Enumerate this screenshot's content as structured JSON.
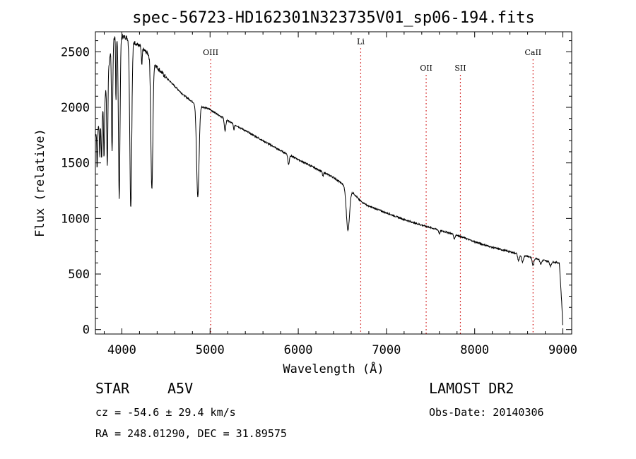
{
  "chart_data": {
    "type": "line",
    "title": "spec-56723-HD162301N323735V01_sp06-194.fits",
    "xlabel": "Wavelength (Å)",
    "ylabel": "Flux (relative)",
    "xlim": [
      3700,
      9100
    ],
    "ylim": [
      -40,
      2680
    ],
    "x_ticks": [
      4000,
      5000,
      6000,
      7000,
      8000,
      9000
    ],
    "y_ticks": [
      0,
      500,
      1000,
      1500,
      2000,
      2500
    ],
    "grid": false,
    "line_color": "#000000",
    "marker_color": "#cc0000",
    "continuum": [
      [
        3700,
        1750
      ],
      [
        3750,
        1850
      ],
      [
        3800,
        2050
      ],
      [
        3850,
        2350
      ],
      [
        3880,
        2600
      ],
      [
        3950,
        2650
      ],
      [
        4050,
        2630
      ],
      [
        4150,
        2580
      ],
      [
        4200,
        2550
      ],
      [
        4300,
        2480
      ],
      [
        4400,
        2360
      ],
      [
        4500,
        2270
      ],
      [
        4600,
        2190
      ],
      [
        4700,
        2110
      ],
      [
        4800,
        2050
      ],
      [
        4900,
        2010
      ],
      [
        5000,
        1980
      ],
      [
        5200,
        1880
      ],
      [
        5400,
        1790
      ],
      [
        5600,
        1700
      ],
      [
        5800,
        1610
      ],
      [
        6000,
        1530
      ],
      [
        6200,
        1450
      ],
      [
        6400,
        1370
      ],
      [
        6600,
        1250
      ],
      [
        6700,
        1160
      ],
      [
        6800,
        1110
      ],
      [
        7000,
        1050
      ],
      [
        7200,
        990
      ],
      [
        7400,
        940
      ],
      [
        7600,
        895
      ],
      [
        7800,
        850
      ],
      [
        8000,
        790
      ],
      [
        8200,
        740
      ],
      [
        8400,
        700
      ],
      [
        8600,
        660
      ],
      [
        8800,
        620
      ],
      [
        8960,
        600
      ],
      [
        8990,
        200
      ],
      [
        9000,
        0
      ]
    ],
    "absorption_lines": [
      {
        "x": 3720,
        "depth": 350,
        "width": 4
      },
      {
        "x": 3750,
        "depth": 300,
        "width": 4
      },
      {
        "x": 3770,
        "depth": 400,
        "width": 5
      },
      {
        "x": 3798,
        "depth": 500,
        "width": 5
      },
      {
        "x": 3835,
        "depth": 800,
        "width": 6
      },
      {
        "x": 3889,
        "depth": 1000,
        "width": 7
      },
      {
        "x": 3933,
        "depth": 600,
        "width": 4
      },
      {
        "x": 3970,
        "depth": 1450,
        "width": 9
      },
      {
        "x": 4101,
        "depth": 1500,
        "width": 11
      },
      {
        "x": 4226,
        "depth": 160,
        "width": 5
      },
      {
        "x": 4340,
        "depth": 1180,
        "width": 11
      },
      {
        "x": 4861,
        "depth": 830,
        "width": 14
      },
      {
        "x": 5170,
        "depth": 110,
        "width": 8
      },
      {
        "x": 5270,
        "depth": 50,
        "width": 6
      },
      {
        "x": 5890,
        "depth": 90,
        "width": 8
      },
      {
        "x": 6280,
        "depth": 40,
        "width": 6
      },
      {
        "x": 6563,
        "depth": 380,
        "width": 18
      },
      {
        "x": 7600,
        "depth": 30,
        "width": 8
      },
      {
        "x": 7770,
        "depth": 40,
        "width": 8
      },
      {
        "x": 8498,
        "depth": 60,
        "width": 10
      },
      {
        "x": 8542,
        "depth": 70,
        "width": 10
      },
      {
        "x": 8662,
        "depth": 70,
        "width": 10
      },
      {
        "x": 8750,
        "depth": 40,
        "width": 10
      },
      {
        "x": 8860,
        "depth": 40,
        "width": 10
      }
    ],
    "line_markers": [
      {
        "name": "OIII",
        "x": 5007,
        "label_y": 2470
      },
      {
        "name": "Li",
        "x": 6708,
        "label_y": 2570
      },
      {
        "name": "OII",
        "x": 7450,
        "label_y": 2330
      },
      {
        "name": "SII",
        "x": 7838,
        "label_y": 2330
      },
      {
        "name": "CaII",
        "x": 8662,
        "label_y": 2470
      }
    ]
  },
  "info": {
    "object_class": "STAR",
    "subclass": "A5V",
    "survey": "LAMOST DR2",
    "cz": "cz = -54.6 ± 29.4 km/s",
    "obs_date": "Obs-Date: 20140306",
    "coords": "RA = 248.01290, DEC =  31.89575"
  }
}
